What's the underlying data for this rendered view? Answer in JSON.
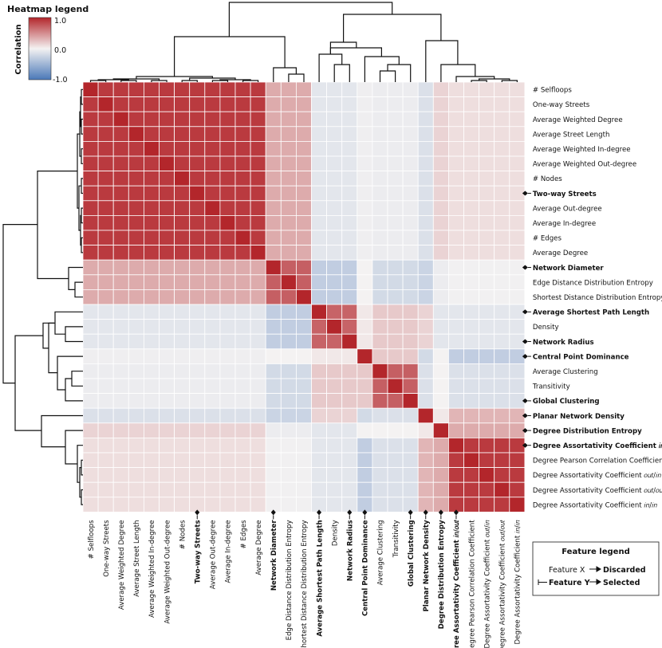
{
  "chart_data": {
    "type": "heatmap",
    "title": "",
    "labels": [
      "# Selfloops",
      "One-way Streets",
      "Average Weighted Degree",
      "Average Street Length",
      "Average Weighted In-degree",
      "Average Weighted Out-degree",
      "# Nodes",
      "Two-way Streets",
      "Average Out-degree",
      "Average In-degree",
      "# Edges",
      "Average Degree",
      "Network Diameter",
      "Edge Distance Distribution Entropy",
      "Shortest Distance Distribution Entropy",
      "Average Shortest Path Length",
      "Density",
      "Network Radius",
      "Central Point Dominance",
      "Average Clustering",
      "Transitivity",
      "Global Clustering",
      "Planar Network Density",
      "Degree Distribution Entropy",
      "Degree Assortativity Coefficient in/out",
      "Degree Pearson Correlation Coefficient",
      "Degree Assortativity Coefficient out/in",
      "Degree Assortativity Coefficient out/out",
      "Degree Assortativity Coefficient in/in"
    ],
    "selected_features": [
      "Two-way Streets",
      "Network Diameter",
      "Average Shortest Path Length",
      "Network Radius",
      "Central Point Dominance",
      "Global Clustering",
      "Planar Network Density",
      "Degree Distribution Entropy",
      "Degree Assortativity Coefficient in/out"
    ],
    "groups": [
      {
        "start": 0,
        "end": 11,
        "r": 0.9
      },
      {
        "start": 12,
        "end": 14,
        "r": 0.72
      },
      {
        "start": 15,
        "end": 17,
        "r": 0.7
      },
      {
        "start": 18,
        "end": 18,
        "r": 1.0
      },
      {
        "start": 19,
        "end": 21,
        "r": 0.72
      },
      {
        "start": 22,
        "end": 22,
        "r": 1.0
      },
      {
        "start": 23,
        "end": 23,
        "r": 1.0
      },
      {
        "start": 24,
        "end": 28,
        "r": 0.9
      }
    ],
    "group_correlations": [
      [
        0.9,
        0.35,
        -0.1,
        -0.03,
        -0.05,
        -0.15,
        0.15,
        0.1
      ],
      [
        0.35,
        0.72,
        -0.3,
        0.0,
        -0.2,
        -0.25,
        -0.05,
        -0.02
      ],
      [
        -0.1,
        -0.3,
        0.7,
        0.05,
        0.2,
        0.15,
        -0.1,
        -0.1
      ],
      [
        -0.03,
        0.0,
        0.05,
        1.0,
        0.2,
        -0.2,
        0.0,
        -0.3
      ],
      [
        -0.05,
        -0.2,
        0.2,
        0.2,
        0.72,
        -0.15,
        0.0,
        -0.15
      ],
      [
        -0.15,
        -0.25,
        0.15,
        -0.2,
        -0.15,
        1.0,
        0.05,
        0.3
      ],
      [
        0.15,
        -0.05,
        -0.1,
        0.0,
        0.0,
        0.05,
        1.0,
        0.35
      ],
      [
        0.1,
        -0.02,
        -0.1,
        -0.3,
        -0.15,
        0.3,
        0.35,
        0.9
      ]
    ],
    "zlim": [
      -1.0,
      1.0
    ],
    "colormap": {
      "low": "#4a78b8",
      "mid": "#f4f2f2",
      "high": "#b3262b"
    }
  },
  "colorbar": {
    "title": "Heatmap legend",
    "label": "Correlation",
    "ticks": [
      "1.0",
      "0.0",
      "-1.0"
    ]
  },
  "feature_legend": {
    "title": "Feature legend",
    "row1_feature": "Feature X",
    "row1_status": "Discarded",
    "row2_feature": "Feature Y",
    "row2_status": "Selected"
  }
}
